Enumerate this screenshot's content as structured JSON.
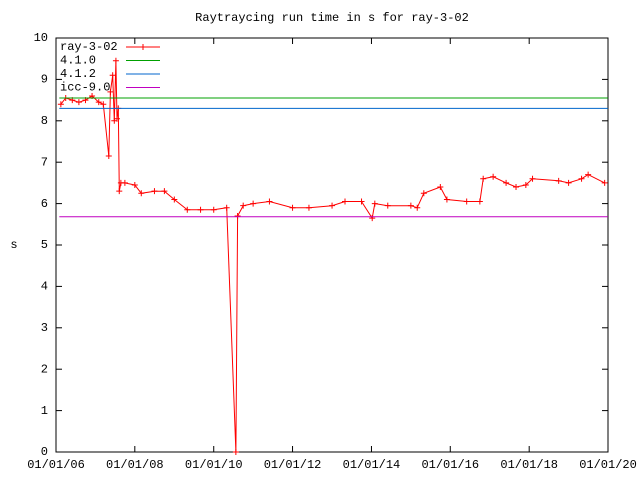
{
  "chart_data": {
    "type": "line",
    "title": "Raytraycing run time in s for ray-3-02",
    "y_label": "s",
    "xlim": [
      "2006-01-01",
      "2020-01-01"
    ],
    "xticks": [
      {
        "value": "2006-01-01",
        "label": "01/01/06"
      },
      {
        "value": "2008-01-01",
        "label": "01/01/08"
      },
      {
        "value": "2010-01-01",
        "label": "01/01/10"
      },
      {
        "value": "2012-01-01",
        "label": "01/01/12"
      },
      {
        "value": "2014-01-01",
        "label": "01/01/14"
      },
      {
        "value": "2016-01-01",
        "label": "01/01/16"
      },
      {
        "value": "2018-01-01",
        "label": "01/01/18"
      },
      {
        "value": "2020-01-01",
        "label": "01/01/20"
      }
    ],
    "ylim": [
      0,
      10
    ],
    "yticks": [
      0,
      1,
      2,
      3,
      4,
      5,
      6,
      7,
      8,
      9,
      10
    ],
    "legend": "top-left",
    "series": [
      {
        "name": "ray-3-02",
        "color": "#ff0000",
        "markers": true,
        "x": [
          "2006-02-15",
          "2006-04-01",
          "2006-06-01",
          "2006-08-01",
          "2006-10-01",
          "2006-12-01",
          "2007-02-01",
          "2007-03-15",
          "2007-05-05",
          "2007-05-20",
          "2007-06-10",
          "2007-06-25",
          "2007-07-10",
          "2007-07-20",
          "2007-08-01",
          "2007-08-10",
          "2007-08-25",
          "2007-10-01",
          "2008-01-01",
          "2008-03-01",
          "2008-07-01",
          "2008-10-01",
          "2009-01-01",
          "2009-05-01",
          "2009-09-01",
          "2010-01-01",
          "2010-05-01",
          "2010-07-25",
          "2010-08-10",
          "2010-10-01",
          "2011-01-01",
          "2011-06-01",
          "2012-01-01",
          "2012-06-01",
          "2013-01-01",
          "2013-05-01",
          "2013-10-01",
          "2014-01-08",
          "2014-02-01",
          "2014-06-01",
          "2015-01-01",
          "2015-03-01",
          "2015-05-01",
          "2015-10-01",
          "2015-12-01",
          "2016-06-01",
          "2016-10-01",
          "2016-11-01",
          "2017-02-01",
          "2017-06-01",
          "2017-09-01",
          "2017-12-01",
          "2018-02-01",
          "2018-10-01",
          "2019-01-01",
          "2019-05-01",
          "2019-07-01",
          "2019-12-01"
        ],
        "values": [
          8.4,
          8.55,
          8.5,
          8.45,
          8.5,
          8.6,
          8.45,
          8.4,
          7.15,
          8.7,
          9.1,
          8.0,
          9.45,
          8.05,
          8.3,
          6.3,
          6.5,
          6.5,
          6.45,
          6.25,
          6.3,
          6.3,
          6.1,
          5.85,
          5.85,
          5.85,
          5.9,
          0,
          5.7,
          5.95,
          6.0,
          6.05,
          5.9,
          5.9,
          5.95,
          6.05,
          6.05,
          5.65,
          6.0,
          5.95,
          5.95,
          5.9,
          6.25,
          6.4,
          6.1,
          6.05,
          6.05,
          6.6,
          6.65,
          6.5,
          6.4,
          6.45,
          6.6,
          6.55,
          6.5,
          6.6,
          6.7,
          6.5
        ]
      },
      {
        "name": "4.1.0",
        "color": "#00a000",
        "x": [
          "2006-02-01",
          "2019-12-31"
        ],
        "values": [
          8.55,
          8.55
        ]
      },
      {
        "name": "4.1.2",
        "color": "#0066cc",
        "x": [
          "2006-02-01",
          "2019-12-31"
        ],
        "values": [
          8.3,
          8.3
        ]
      },
      {
        "name": "icc-9.0",
        "color": "#c000c0",
        "x": [
          "2006-02-01",
          "2019-12-31"
        ],
        "values": [
          5.68,
          5.68
        ]
      }
    ]
  }
}
